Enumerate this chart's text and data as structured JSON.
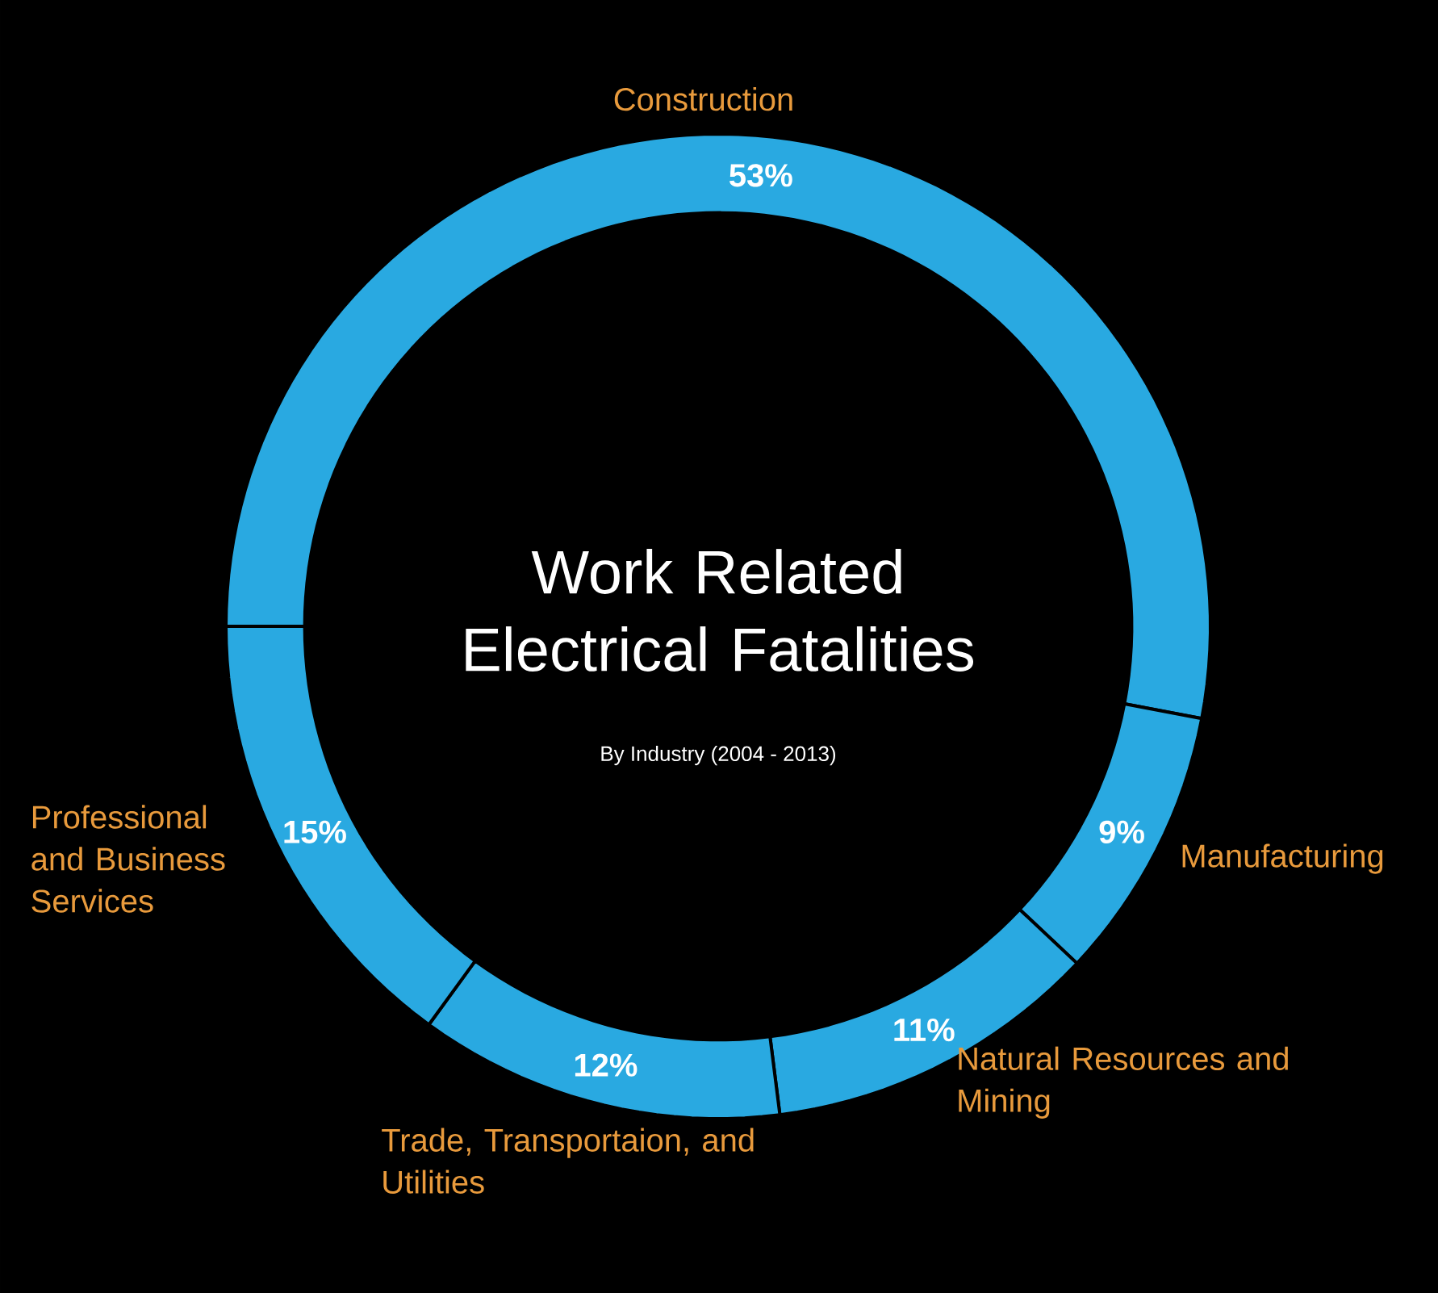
{
  "chart_data": {
    "type": "donut",
    "title": "Work Related Electrical Fatalities",
    "subtitle": "By Industry (2004 - 2013)",
    "categories": [
      "Construction",
      "Manufacturing",
      "Natural Resources and Mining",
      "Trade, Transportaion, and Utilities",
      "Professional and Business Services"
    ],
    "values": [
      53,
      9,
      11,
      12,
      15
    ],
    "colors": [
      "#29a9e1",
      "#29a9e1",
      "#29a9e1",
      "#29a9e1",
      "#29a9e1"
    ],
    "value_labels": [
      "53%",
      "9%",
      "11%",
      "12%",
      "15%"
    ]
  }
}
